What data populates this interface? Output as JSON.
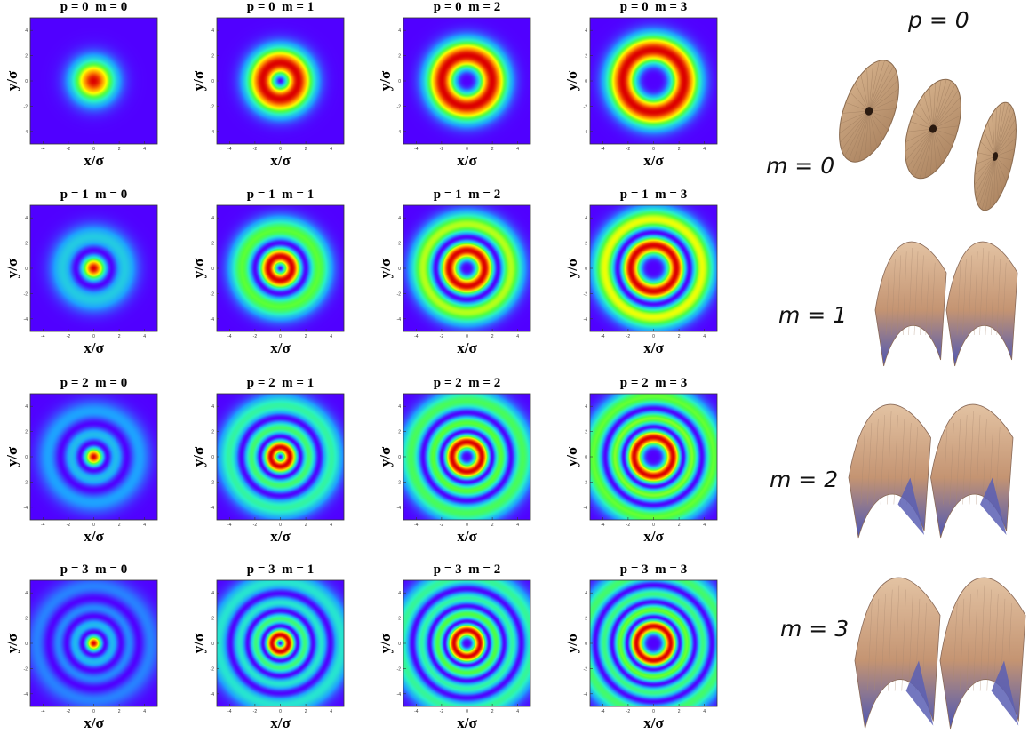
{
  "xlabel": "x/σ",
  "ylabel": "y/σ",
  "tick_labels": [
    "-4",
    "-2",
    "0",
    "2",
    "4"
  ],
  "axis_range": [
    -5,
    5
  ],
  "colormap": [
    "#5000ff",
    "#1ea0ff",
    "#28f0c8",
    "#50ff3c",
    "#ffff00",
    "#ff8c00",
    "#dc0000"
  ],
  "panels": [
    {
      "title": "p = 0  m = 0",
      "p": 0,
      "m": 0
    },
    {
      "title": "p = 0  m = 1",
      "p": 0,
      "m": 1
    },
    {
      "title": "p = 0  m = 2",
      "p": 0,
      "m": 2
    },
    {
      "title": "p = 0  m = 3",
      "p": 0,
      "m": 3
    },
    {
      "title": "p = 1  m = 0",
      "p": 1,
      "m": 0
    },
    {
      "title": "p = 1  m = 1",
      "p": 1,
      "m": 1
    },
    {
      "title": "p = 1  m = 2",
      "p": 1,
      "m": 2
    },
    {
      "title": "p = 1  m = 3",
      "p": 1,
      "m": 3
    },
    {
      "title": "p = 2  m = 0",
      "p": 2,
      "m": 0
    },
    {
      "title": "p = 2  m = 1",
      "p": 2,
      "m": 1
    },
    {
      "title": "p = 2  m = 2",
      "p": 2,
      "m": 2
    },
    {
      "title": "p = 2  m = 3",
      "p": 2,
      "m": 3
    },
    {
      "title": "p = 3  m = 0",
      "p": 3,
      "m": 0
    },
    {
      "title": "p = 3  m = 1",
      "p": 3,
      "m": 1
    },
    {
      "title": "p = 3  m = 2",
      "p": 3,
      "m": 2
    },
    {
      "title": "p = 3  m = 3",
      "p": 3,
      "m": 3
    }
  ],
  "side": {
    "header": "p = 0",
    "rows": [
      {
        "label": "m = 0",
        "m": 0
      },
      {
        "label": "m = 1",
        "m": 1
      },
      {
        "label": "m = 2",
        "m": 2
      },
      {
        "label": "m = 3",
        "m": 3
      }
    ]
  },
  "surface_colors": {
    "top": "#d9b48c",
    "mid": "#c89a76",
    "bottom": "#5a5fb4",
    "dark": "#2a1a10"
  }
}
